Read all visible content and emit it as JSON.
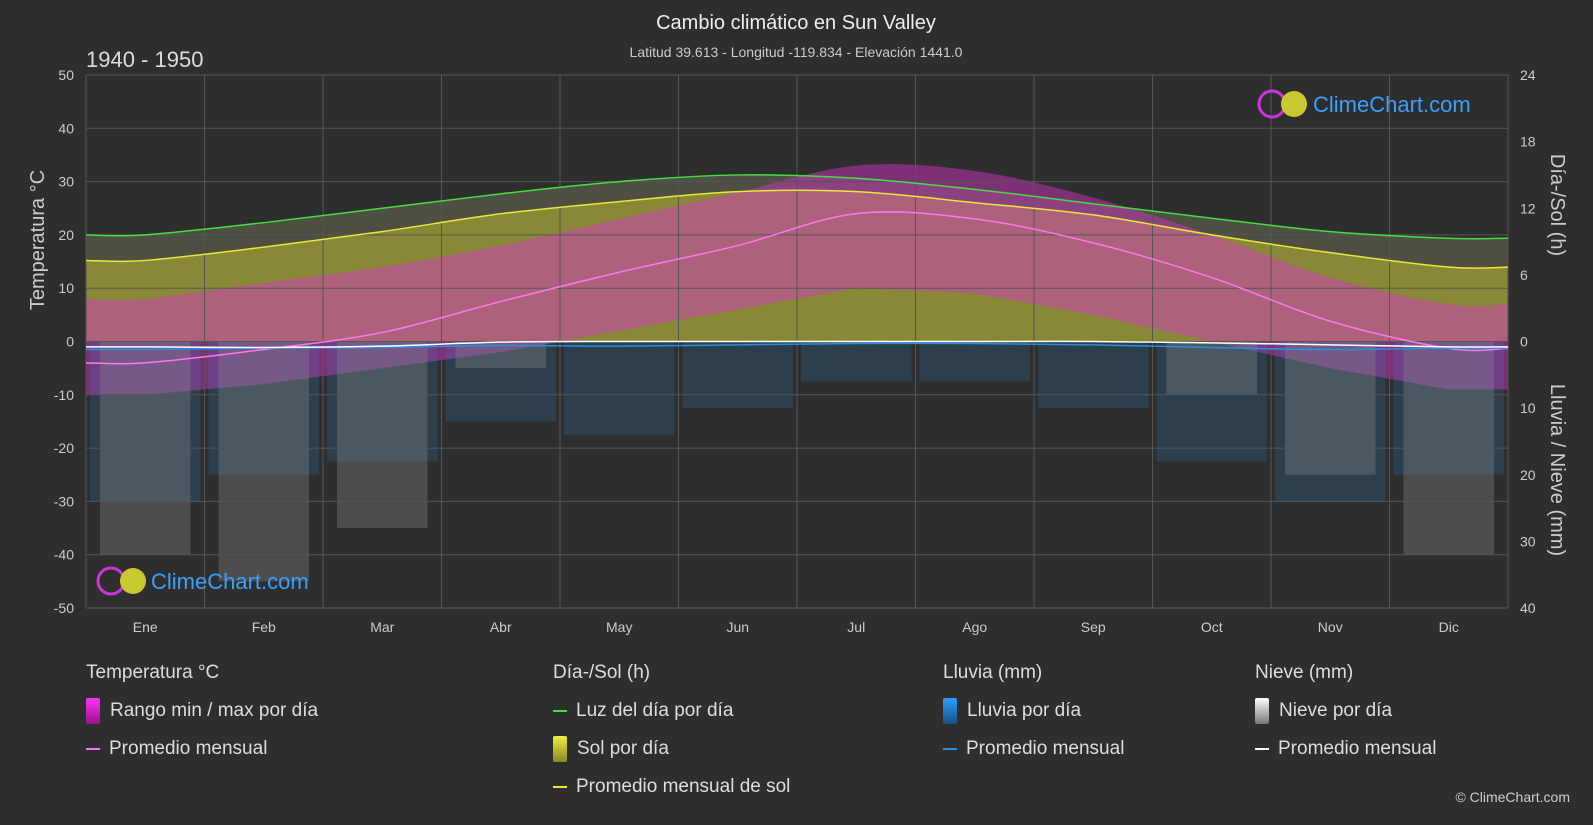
{
  "header": {
    "title": "Cambio climático en Sun Valley",
    "subtitle": "Latitud 39.613 - Longitud -119.834 - Elevación 1441.0",
    "period": "1940 - 1950"
  },
  "logo": {
    "text": "ClimeChart.com"
  },
  "copyright": "© ClimeChart.com",
  "colors": {
    "background": "#2e2e2e",
    "grid": "#555555",
    "daylight": "#44dd44",
    "sunshine": "#e8e83a",
    "sunshine_fill": "#b8b830",
    "temp_range": "#dd33cc",
    "temp_avg": "#ff77ee",
    "rain": "#2a8fe0",
    "snow": "#ffffff",
    "logo": "#3aa0ff"
  },
  "legend": {
    "temperature": {
      "title": "Temperatura °C",
      "range_label": "Rango min / max por día",
      "avg_label": "Promedio mensual"
    },
    "sun": {
      "title": "Día-/Sol (h)",
      "daylight_label": "Luz del día por día",
      "sunshine_label": "Sol por día",
      "sunshine_avg_label": "Promedio mensual de sol"
    },
    "rain": {
      "title": "Lluvia (mm)",
      "daily_label": "Lluvia por día",
      "avg_label": "Promedio mensual"
    },
    "snow": {
      "title": "Nieve (mm)",
      "daily_label": "Nieve por día",
      "avg_label": "Promedio mensual"
    }
  },
  "chart_data": {
    "type": "area",
    "categories": [
      "Ene",
      "Feb",
      "Mar",
      "Abr",
      "May",
      "Jun",
      "Jul",
      "Ago",
      "Sep",
      "Oct",
      "Nov",
      "Dic"
    ],
    "y_left": {
      "label": "Temperatura °C",
      "range": [
        -50,
        50
      ],
      "ticks": [
        50,
        40,
        30,
        20,
        10,
        0,
        -10,
        -20,
        -30,
        -40,
        -50
      ]
    },
    "y_right_top": {
      "label": "Día-/Sol (h)",
      "range": [
        0,
        24
      ],
      "ticks": [
        24,
        18,
        12,
        6,
        0
      ]
    },
    "y_right_bottom": {
      "label": "Lluvia / Nieve (mm)",
      "range": [
        0,
        40
      ],
      "ticks": [
        10,
        20,
        30,
        40
      ]
    },
    "grid": true,
    "series": [
      {
        "name": "Luz del día por día",
        "unit": "h",
        "values": [
          9.6,
          10.7,
          12.0,
          13.3,
          14.4,
          15.0,
          14.7,
          13.7,
          12.4,
          11.1,
          9.9,
          9.3
        ]
      },
      {
        "name": "Promedio mensual de sol",
        "unit": "h",
        "values": [
          7.3,
          8.5,
          9.9,
          11.5,
          12.6,
          13.5,
          13.5,
          12.5,
          11.4,
          9.6,
          8.0,
          6.7
        ]
      },
      {
        "name": "Temperatura promedio mensual",
        "unit": "°C",
        "values": [
          -4.0,
          -1.5,
          1.7,
          7.5,
          13.0,
          18.0,
          24.0,
          23.0,
          18.5,
          12.0,
          3.8,
          -1.3
        ]
      },
      {
        "name": "Temperatura máxima diaria promedio",
        "unit": "°C",
        "values": [
          8,
          11,
          14,
          18,
          23,
          28,
          33,
          32,
          27,
          20,
          12,
          7
        ]
      },
      {
        "name": "Temperatura mínima diaria promedio",
        "unit": "°C",
        "values": [
          -10,
          -8,
          -5,
          -2,
          2,
          6,
          10,
          9,
          5,
          0,
          -5,
          -9
        ]
      },
      {
        "name": "Lluvia promedio mensual",
        "unit": "mm",
        "values": [
          1.2,
          1.0,
          0.9,
          0.6,
          0.7,
          0.5,
          0.3,
          0.3,
          0.5,
          0.9,
          1.2,
          1.0
        ]
      },
      {
        "name": "Nieve promedio mensual",
        "unit": "mm",
        "values": [
          0.8,
          0.9,
          0.7,
          0.1,
          0.0,
          0.0,
          0.0,
          0.0,
          0.0,
          0.2,
          0.5,
          0.8
        ]
      }
    ]
  }
}
